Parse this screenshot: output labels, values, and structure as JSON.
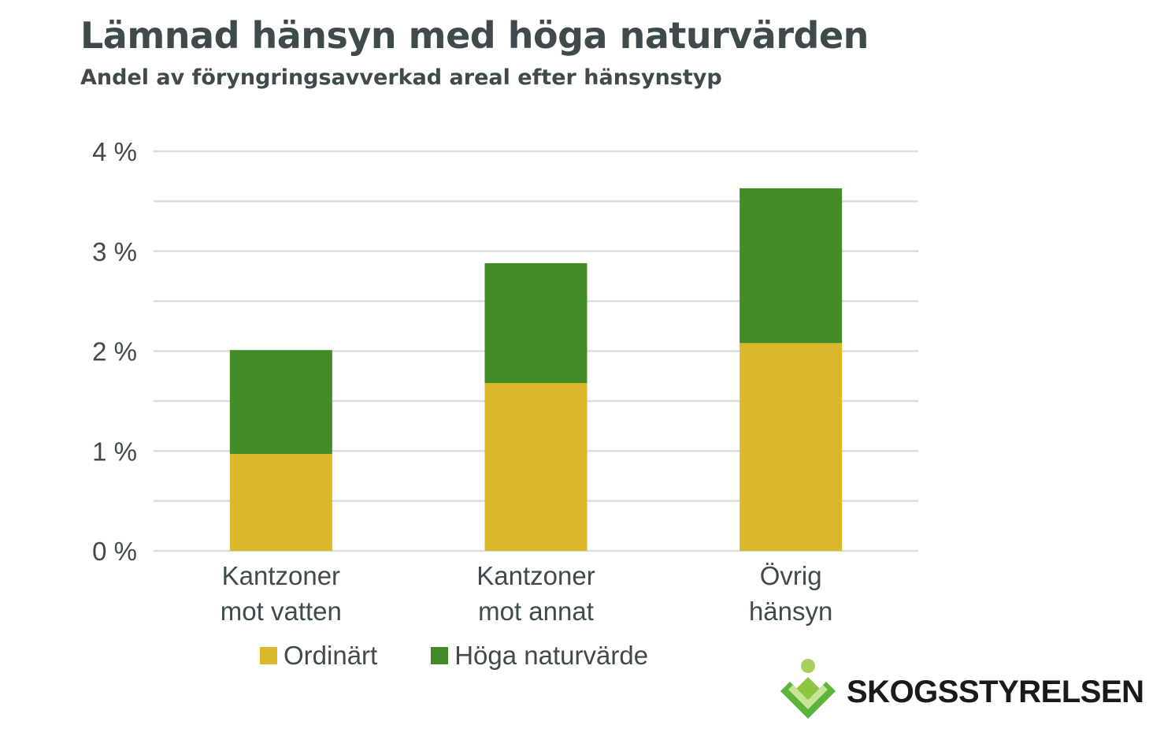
{
  "header": {
    "title": "Lämnad hänsyn med höga naturvärden",
    "subtitle": "Andel av föryngringsavverkad areal efter hänsynstyp"
  },
  "colors": {
    "ordinart": "#dbb82a",
    "hoga": "#438b28",
    "grid": "#d9dedd",
    "text": "#3e4a4c"
  },
  "chart_data": {
    "type": "bar",
    "stacked": true,
    "categories": [
      [
        "Kantzoner",
        "mot vatten"
      ],
      [
        "Kantzoner",
        "mot annat"
      ],
      [
        "Övrig",
        "hänsyn"
      ]
    ],
    "series": [
      {
        "name": "Ordinärt",
        "values": [
          0.97,
          1.68,
          2.08
        ]
      },
      {
        "name": "Höga naturvärde",
        "values": [
          1.04,
          1.2,
          1.55
        ]
      }
    ],
    "yticks": [
      "0 %",
      "1 %",
      "2 %",
      "3 %",
      "4 %"
    ],
    "ylim": [
      0,
      4
    ],
    "grid": true,
    "legend": "bottom"
  },
  "logo": {
    "text": "SKOGSSTYRELSEN"
  }
}
